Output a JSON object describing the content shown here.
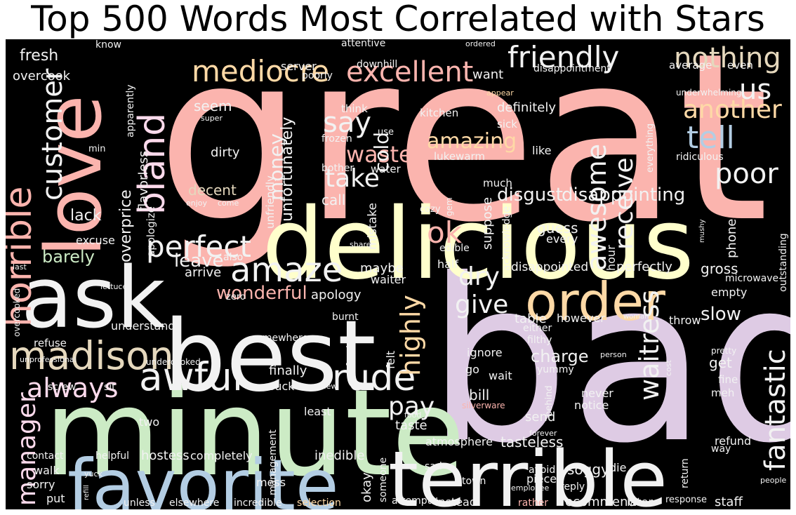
{
  "title": "Top 500 Words Most Correlated with Stars",
  "colors": {
    "background": "#000000",
    "title_text": "#000000",
    "pink": "#fbb4ae",
    "blue": "#b3cde3",
    "green": "#ccebc5",
    "purple": "#decbe4",
    "orange": "#fed9a6",
    "yellow": "#ffffcc",
    "tan": "#e5d8bd",
    "lightpink": "#fddaec",
    "white": "#f2f2f2"
  },
  "words": [
    "great",
    "bad",
    "delicious",
    "minute",
    "best",
    "ask",
    "love",
    "terrible",
    "favorite",
    "order",
    "awful",
    "madison",
    "horrible",
    "bland",
    "amaze",
    "rude",
    "excellent",
    "mediocre",
    "friendly",
    "nothing",
    "tell",
    "poor",
    "us",
    "another",
    "customer",
    "manager",
    "waitress",
    "fantastic",
    "awesome",
    "perfect",
    "always",
    "waste",
    "say",
    "take",
    "ok",
    "highly",
    "dry",
    "give",
    "money",
    "cold",
    "receive",
    "pay",
    "amazing",
    "disgust",
    "disappointing",
    "slow",
    "wonderful",
    "barely",
    "leave",
    "lack",
    "overprice",
    "fresh",
    "overcook",
    "apparently",
    "flavorless",
    "know",
    "attentive",
    "ordered",
    "downhill",
    "server",
    "poorly",
    "disappointment",
    "average",
    "even",
    "want",
    "definitely",
    "kitchen",
    "sick",
    "think",
    "seem",
    "dirty",
    "decent",
    "enjoy",
    "come",
    "super",
    "frozen",
    "use",
    "lukewarm",
    "like",
    "ridiculous",
    "underwhelming",
    "everything",
    "appear",
    "unfortunately",
    "bother",
    "water",
    "much",
    "unfriendly",
    "apologize",
    "call",
    "suppose",
    "cozy",
    "gem",
    "mistake",
    "acknowledge",
    "guess",
    "hour",
    "phone",
    "every",
    "mushy",
    "outstanding",
    "share",
    "edible",
    "half",
    "excuse",
    "last",
    "also",
    "arrive",
    "maybe",
    "waiter",
    "lettuce",
    "overcooked",
    "apology",
    "zero",
    "disappointed",
    "perfectly",
    "gross",
    "empty",
    "microwave",
    "table",
    "however",
    "either",
    "throw",
    "understand",
    "refuse",
    "somewhere",
    "burnt",
    "felt",
    "perfection",
    "woman",
    "charge",
    "filthy",
    "ignore",
    "yummy",
    "pretty",
    "person",
    "cost",
    "get",
    "fine",
    "finally",
    "unprofessional",
    "undercooked",
    "go",
    "wait",
    "meh",
    "screw",
    "sit",
    "suck",
    "review",
    "silverware",
    "behind",
    "never",
    "notice",
    "bill",
    "least",
    "food",
    "two",
    "send",
    "forever",
    "taste",
    "tasteless",
    "atmosphere",
    "refund",
    "way",
    "contact",
    "helpful",
    "hostess",
    "completely",
    "management",
    "inedible",
    "sorry",
    "walk",
    "okay",
    "mess",
    "someone",
    "sad",
    "town",
    "avoid",
    "piece",
    "soggy",
    "return",
    "die",
    "reply",
    "employee",
    "people",
    "put",
    "yuck",
    "refill",
    "unless",
    "elsewhere",
    "incredible",
    "selection",
    "attempt",
    "instead",
    "rather",
    "later",
    "response",
    "staff",
    "recommend",
    "min"
  ]
}
